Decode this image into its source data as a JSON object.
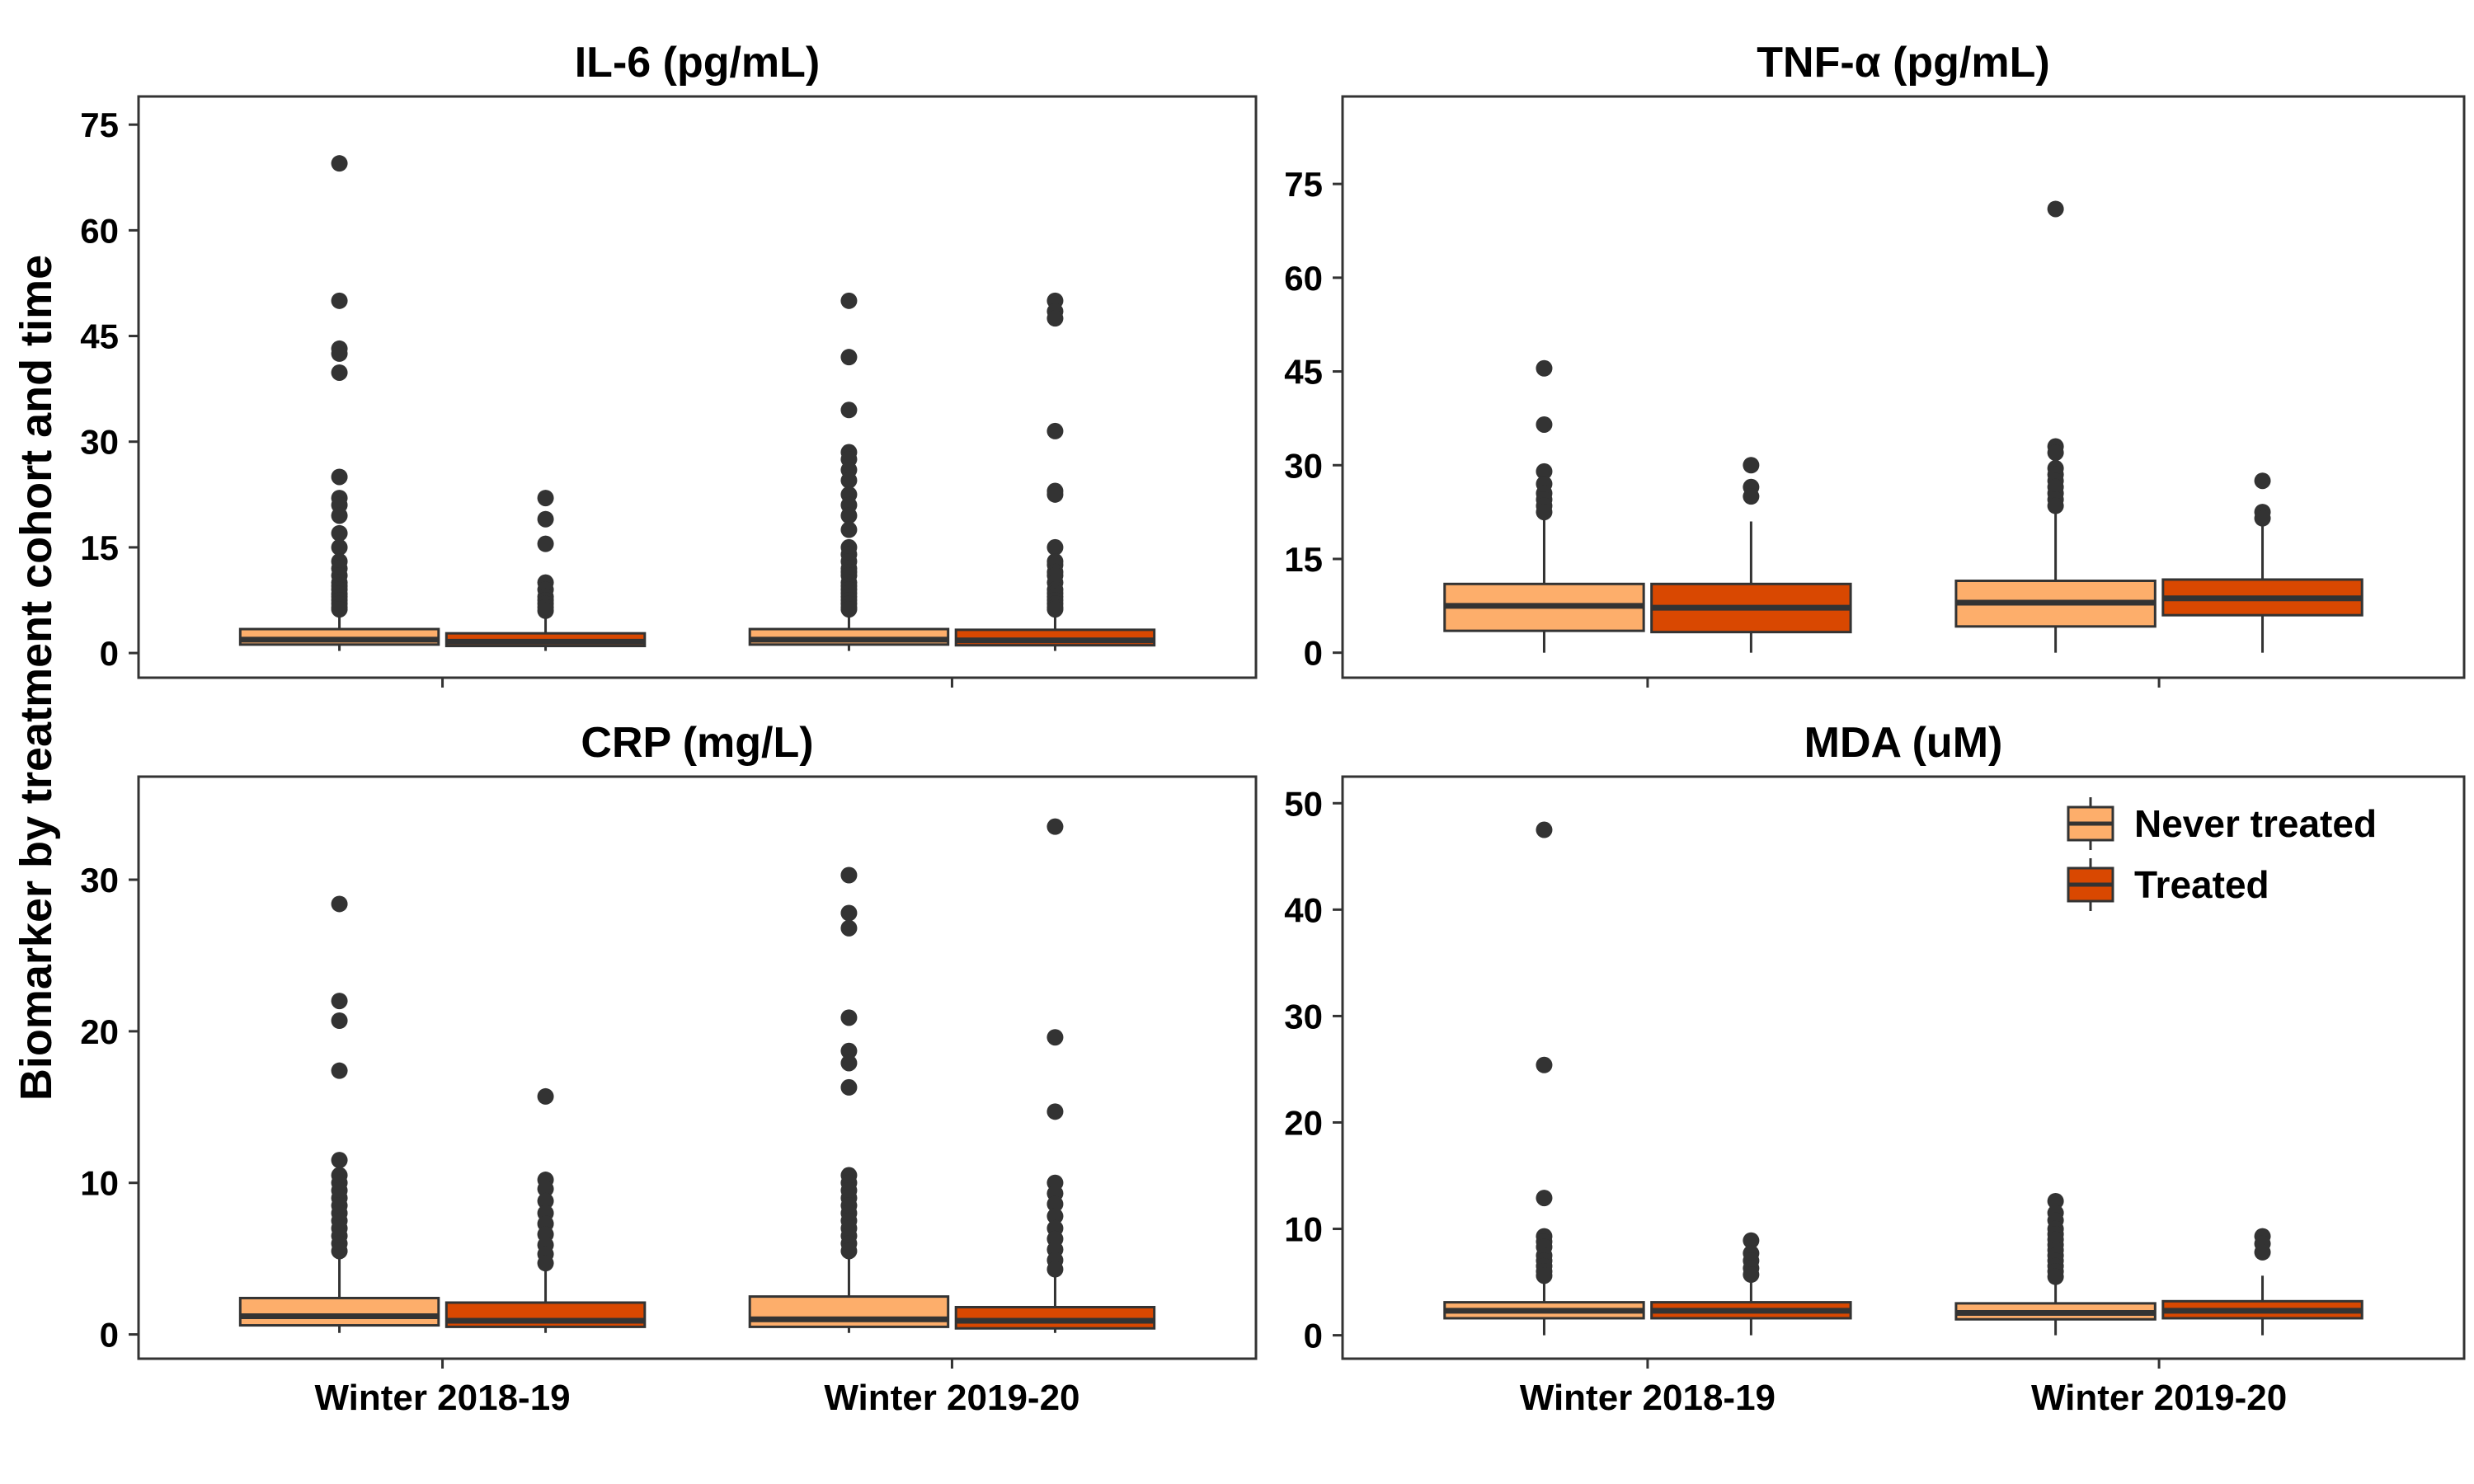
{
  "figure": {
    "ylabel": "Biomarker by treatment cohort and time"
  },
  "colors": {
    "never_treated": "#FDAE6B",
    "treated": "#D94801",
    "box_outline": "#333333",
    "outlier": "#333333",
    "panel_border": "#333333"
  },
  "legend": {
    "placement": "top-right of MDA panel",
    "items": [
      {
        "label": "Never treated",
        "color": "#FDAE6B"
      },
      {
        "label": "Treated",
        "color": "#D94801"
      }
    ]
  },
  "chart_data": [
    {
      "type": "box",
      "title": "IL-6 (pg/mL)",
      "ylim": [
        -3.5,
        79
      ],
      "yticks": [
        0,
        15,
        30,
        45,
        60,
        75
      ],
      "show_xticklabels": false,
      "categories": [
        "Winter 2018-19",
        "Winter 2019-20"
      ],
      "series": [
        {
          "name": "Never treated",
          "boxes": [
            {
              "whislo": 0.3,
              "q1": 1.2,
              "med": 1.9,
              "q3": 3.4,
              "whishi": 5.8,
              "outliers": [
                69.5,
                50,
                43.2,
                42.5,
                39.8,
                25,
                22,
                21,
                19.5,
                17,
                15,
                13,
                12,
                11,
                10,
                9.5,
                9,
                8.4,
                8,
                7.5,
                7,
                6.5,
                6.2
              ]
            },
            {
              "whislo": 0.3,
              "q1": 1.2,
              "med": 1.9,
              "q3": 3.4,
              "whishi": 5.8,
              "outliers": [
                50,
                42,
                34.5,
                28.5,
                27.5,
                26,
                24.5,
                22.5,
                21,
                19.5,
                17.5,
                15,
                14,
                13,
                12,
                11.5,
                11,
                10,
                9.5,
                9,
                8.5,
                8,
                7.5,
                7,
                6.5,
                6.2
              ]
            }
          ]
        },
        {
          "name": "Treated",
          "boxes": [
            {
              "whislo": 0.3,
              "q1": 1.0,
              "med": 1.6,
              "q3": 2.8,
              "whishi": 5.5,
              "outliers": [
                22,
                19,
                15.5,
                10,
                9,
                8,
                7.5,
                7,
                6.5,
                6
              ]
            },
            {
              "whislo": 0.3,
              "q1": 1.1,
              "med": 1.8,
              "q3": 3.3,
              "whishi": 5.8,
              "outliers": [
                50,
                48.5,
                47.5,
                31.5,
                23,
                22.5,
                15,
                13,
                12.5,
                11.5,
                11,
                10,
                9,
                8.5,
                8,
                7.5,
                7,
                6.5,
                6.2
              ]
            }
          ]
        }
      ]
    },
    {
      "type": "box",
      "title": "TNF-α (pg/mL)",
      "ylim": [
        -4,
        89
      ],
      "yticks": [
        0,
        15,
        30,
        45,
        60,
        75
      ],
      "show_xticklabels": false,
      "categories": [
        "Winter 2018-19",
        "Winter 2019-20"
      ],
      "series": [
        {
          "name": "Never treated",
          "boxes": [
            {
              "whislo": 0,
              "q1": 3.5,
              "med": 7.5,
              "q3": 11,
              "whishi": 21.5,
              "outliers": [
                45.5,
                36.5,
                29,
                27,
                25.5,
                24.5,
                23.5,
                22.5
              ]
            },
            {
              "whislo": 0,
              "q1": 4.2,
              "med": 8,
              "q3": 11.5,
              "whishi": 22.5,
              "outliers": [
                71,
                33,
                32,
                29.5,
                28.5,
                27.5,
                26.5,
                25.5,
                24.5,
                23.5
              ]
            }
          ]
        },
        {
          "name": "Treated",
          "boxes": [
            {
              "whislo": 0,
              "q1": 3.3,
              "med": 7.2,
              "q3": 11,
              "whishi": 21,
              "outliers": [
                30,
                26.5,
                25
              ]
            },
            {
              "whislo": 0,
              "q1": 6,
              "med": 8.7,
              "q3": 11.7,
              "whishi": 21,
              "outliers": [
                27.5,
                22.5,
                21.5
              ]
            }
          ]
        }
      ]
    },
    {
      "type": "box",
      "title": "CRP (mg/L)",
      "ylim": [
        -1.6,
        36.8
      ],
      "yticks": [
        0,
        10,
        20,
        30
      ],
      "show_xticklabels": true,
      "categories": [
        "Winter 2018-19",
        "Winter 2019-20"
      ],
      "series": [
        {
          "name": "Never treated",
          "boxes": [
            {
              "whislo": 0.1,
              "q1": 0.6,
              "med": 1.2,
              "q3": 2.4,
              "whishi": 5.3,
              "outliers": [
                28.4,
                22,
                20.7,
                17.4,
                11.5,
                10.5,
                10,
                9.5,
                9,
                8.5,
                8,
                7.5,
                7,
                6.5,
                6,
                5.5
              ]
            },
            {
              "whislo": 0.1,
              "q1": 0.5,
              "med": 1.0,
              "q3": 2.5,
              "whishi": 5.3,
              "outliers": [
                30.3,
                27.8,
                26.8,
                20.9,
                18.7,
                17.9,
                16.3,
                10.5,
                10,
                9.5,
                9,
                8.5,
                8,
                7.5,
                7,
                6.5,
                6,
                5.5
              ]
            }
          ]
        },
        {
          "name": "Treated",
          "boxes": [
            {
              "whislo": 0.1,
              "q1": 0.5,
              "med": 0.9,
              "q3": 2.1,
              "whishi": 4.5,
              "outliers": [
                15.7,
                10.2,
                9.6,
                8.8,
                8,
                7.3,
                6.6,
                5.9,
                5.3,
                4.7
              ]
            },
            {
              "whislo": 0.1,
              "q1": 0.4,
              "med": 0.9,
              "q3": 1.8,
              "whishi": 4.2,
              "outliers": [
                33.5,
                19.6,
                14.7,
                10,
                9.3,
                8.6,
                7.8,
                7,
                6.3,
                5.6,
                4.9,
                4.3
              ]
            }
          ]
        }
      ]
    },
    {
      "type": "box",
      "title": "MDA (uM)",
      "ylim": [
        -2.2,
        52.5
      ],
      "yticks": [
        0,
        10,
        20,
        30,
        40,
        50
      ],
      "show_xticklabels": true,
      "categories": [
        "Winter 2018-19",
        "Winter 2019-20"
      ],
      "series": [
        {
          "name": "Never treated",
          "boxes": [
            {
              "whislo": 0,
              "q1": 1.6,
              "med": 2.3,
              "q3": 3.1,
              "whishi": 5.2,
              "outliers": [
                47.5,
                25.4,
                12.9,
                9.3,
                8.8,
                8.3,
                7.5,
                7,
                6.5,
                6,
                5.6
              ]
            },
            {
              "whislo": 0,
              "q1": 1.5,
              "med": 2.1,
              "q3": 3.0,
              "whishi": 5.0,
              "outliers": [
                12.6,
                11.5,
                10.8,
                10,
                9.5,
                9,
                8.5,
                8,
                7.5,
                7,
                6.5,
                6,
                5.5
              ]
            }
          ]
        },
        {
          "name": "Treated",
          "boxes": [
            {
              "whislo": 0,
              "q1": 1.6,
              "med": 2.3,
              "q3": 3.1,
              "whishi": 5.0,
              "outliers": [
                8.9,
                7.7,
                7,
                6.3,
                5.7
              ]
            },
            {
              "whislo": 0,
              "q1": 1.6,
              "med": 2.3,
              "q3": 3.2,
              "whishi": 5.6,
              "outliers": [
                9.3,
                8.6,
                7.8
              ]
            }
          ]
        }
      ]
    }
  ]
}
